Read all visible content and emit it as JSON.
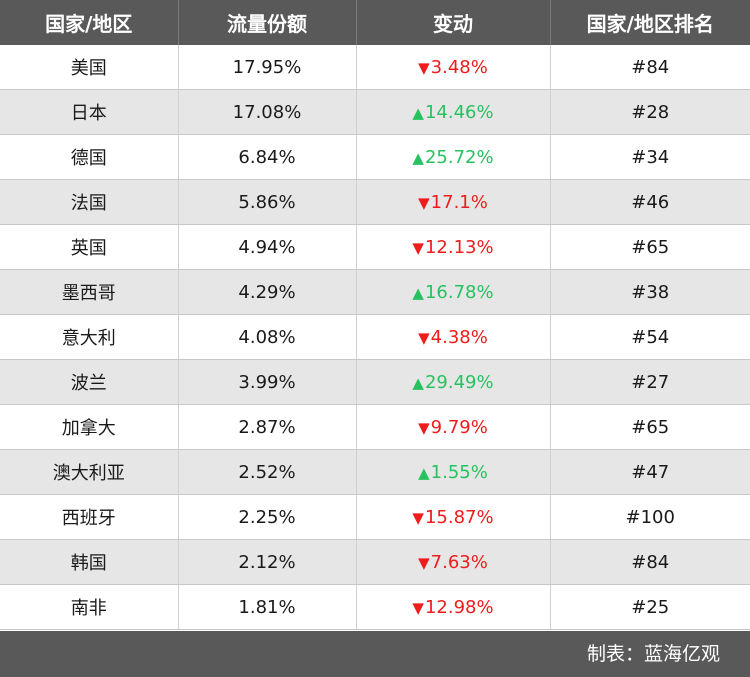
{
  "table": {
    "headers": [
      "国家/地区",
      "流量份额",
      "变动",
      "国家/地区排名"
    ],
    "rows": [
      {
        "country": "美国",
        "share": "17.95%",
        "dir": "down",
        "arrow": "▼",
        "change": "3.48%",
        "rank": "#84"
      },
      {
        "country": "日本",
        "share": "17.08%",
        "dir": "up",
        "arrow": "▲",
        "change": "14.46%",
        "rank": "#28"
      },
      {
        "country": "德国",
        "share": "6.84%",
        "dir": "up",
        "arrow": "▲",
        "change": "25.72%",
        "rank": "#34"
      },
      {
        "country": "法国",
        "share": "5.86%",
        "dir": "down",
        "arrow": "▼",
        "change": "17.1%",
        "rank": "#46"
      },
      {
        "country": "英国",
        "share": "4.94%",
        "dir": "down",
        "arrow": "▼",
        "change": "12.13%",
        "rank": "#65"
      },
      {
        "country": "墨西哥",
        "share": "4.29%",
        "dir": "up",
        "arrow": "▲",
        "change": "16.78%",
        "rank": "#38"
      },
      {
        "country": "意大利",
        "share": "4.08%",
        "dir": "down",
        "arrow": "▼",
        "change": "4.38%",
        "rank": "#54"
      },
      {
        "country": "波兰",
        "share": "3.99%",
        "dir": "up",
        "arrow": "▲",
        "change": "29.49%",
        "rank": "#27"
      },
      {
        "country": "加拿大",
        "share": "2.87%",
        "dir": "down",
        "arrow": "▼",
        "change": "9.79%",
        "rank": "#65"
      },
      {
        "country": "澳大利亚",
        "share": "2.52%",
        "dir": "up",
        "arrow": "▲",
        "change": "1.55%",
        "rank": "#47"
      },
      {
        "country": "西班牙",
        "share": "2.25%",
        "dir": "down",
        "arrow": "▼",
        "change": "15.87%",
        "rank": "#100"
      },
      {
        "country": "韩国",
        "share": "2.12%",
        "dir": "down",
        "arrow": "▼",
        "change": "7.63%",
        "rank": "#84"
      },
      {
        "country": "南非",
        "share": "1.81%",
        "dir": "down",
        "arrow": "▼",
        "change": "12.98%",
        "rank": "#25"
      }
    ]
  },
  "footer": {
    "text": "制表：蓝海亿观"
  },
  "colors": {
    "header_bg": "#595959",
    "up": "#27c25f",
    "down": "#ef1c1c",
    "stripe": "#e6e6e6"
  }
}
